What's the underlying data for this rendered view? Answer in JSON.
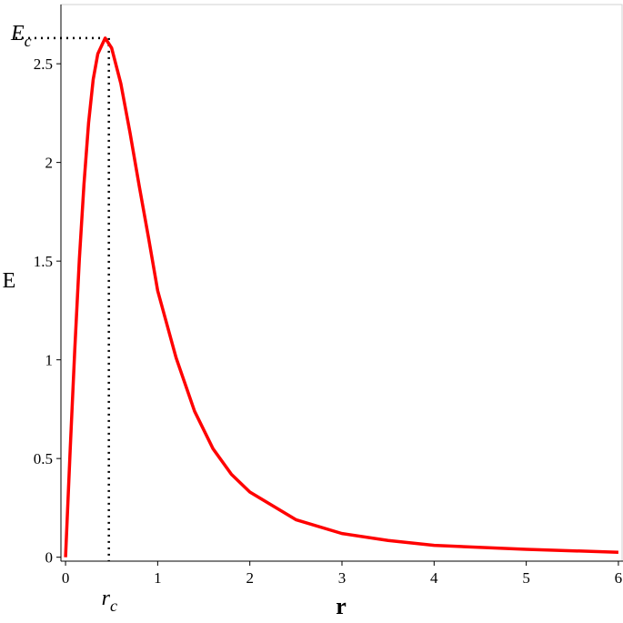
{
  "chart_data": {
    "type": "line",
    "x_label": "r",
    "y_label": "E",
    "x": [
      0,
      0.05,
      0.1,
      0.15,
      0.2,
      0.25,
      0.3,
      0.35,
      0.43,
      0.5,
      0.6,
      0.7,
      0.8,
      0.9,
      1.0,
      1.2,
      1.4,
      1.6,
      1.8,
      2.0,
      2.5,
      3.0,
      3.5,
      4.0,
      5.0,
      6.0
    ],
    "series": [
      {
        "color": "#ff0000",
        "values": [
          0,
          0.54,
          1.05,
          1.51,
          1.89,
          2.2,
          2.42,
          2.55,
          2.63,
          2.58,
          2.4,
          2.15,
          1.88,
          1.62,
          1.35,
          1.01,
          0.74,
          0.55,
          0.42,
          0.33,
          0.19,
          0.12,
          0.085,
          0.06,
          0.04,
          0.025
        ]
      }
    ],
    "xlim": [
      -0.05,
      6.05
    ],
    "ylim": [
      -0.02,
      2.8
    ],
    "xticks": [
      0,
      1,
      2,
      3,
      4,
      5,
      6
    ],
    "yticks": [
      0,
      0.5,
      1,
      1.5,
      2,
      2.5
    ],
    "critical_point": {
      "x": 0.47,
      "y": 2.63,
      "x_label": {
        "main": "r",
        "sub": "c"
      },
      "y_label": {
        "main": "E",
        "sub": "c"
      }
    }
  }
}
